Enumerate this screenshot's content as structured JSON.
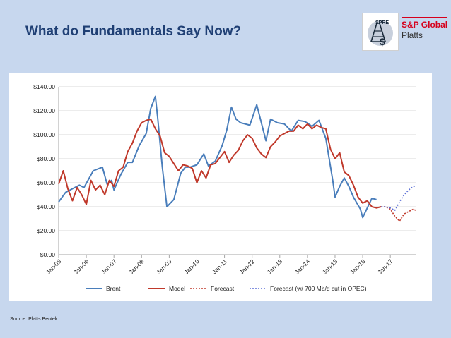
{
  "slide": {
    "title": "What do Fundamentals Say Now?",
    "source": "Source: Platts Bentek"
  },
  "logo": {
    "badge_text": "SPRE",
    "brand_line1": "S&P Global",
    "brand_line2": "Platts"
  },
  "colors": {
    "background": "#c7d7ee",
    "title": "#1f3f74",
    "brent": "#4a7ebb",
    "model": "#c0392b",
    "forecast": "#c0392b",
    "forecast_opec": "#5b6fd6"
  },
  "chart_data": {
    "type": "line",
    "title": "",
    "xlabel": "",
    "ylabel": "",
    "ylim": [
      0,
      140
    ],
    "y_ticks": [
      "$0.00",
      "$20.00",
      "$40.00",
      "$60.00",
      "$80.00",
      "$100.00",
      "$120.00",
      "$140.00"
    ],
    "x_ticks": [
      "Jan-05",
      "Jan-06",
      "Jan-07",
      "Jan-08",
      "Jan-09",
      "Jan-10",
      "Jan-11",
      "Jan-12",
      "Jan-13",
      "Jan-14",
      "Jan-15",
      "Jan-16",
      "Jan-17"
    ],
    "x_range": [
      "2005-01",
      "2017-12"
    ],
    "grid": true,
    "legend_position": "bottom",
    "series": [
      {
        "name": "Brent",
        "style": "solid",
        "points": [
          [
            "2005-01",
            44
          ],
          [
            "2005-04",
            52
          ],
          [
            "2005-08",
            56
          ],
          [
            "2005-10",
            58
          ],
          [
            "2005-12",
            56
          ],
          [
            "2006-04",
            70
          ],
          [
            "2006-08",
            73
          ],
          [
            "2006-10",
            59
          ],
          [
            "2006-12",
            62
          ],
          [
            "2007-01",
            54
          ],
          [
            "2007-04",
            67
          ],
          [
            "2007-07",
            77
          ],
          [
            "2007-09",
            77
          ],
          [
            "2007-12",
            91
          ],
          [
            "2008-03",
            101
          ],
          [
            "2008-05",
            122
          ],
          [
            "2008-07",
            132
          ],
          [
            "2008-08",
            114
          ],
          [
            "2008-10",
            73
          ],
          [
            "2008-12",
            40
          ],
          [
            "2009-03",
            46
          ],
          [
            "2009-06",
            68
          ],
          [
            "2009-08",
            73
          ],
          [
            "2009-10",
            73
          ],
          [
            "2010-01",
            75
          ],
          [
            "2010-04",
            84
          ],
          [
            "2010-06",
            74
          ],
          [
            "2010-09",
            78
          ],
          [
            "2010-12",
            91
          ],
          [
            "2011-02",
            104
          ],
          [
            "2011-04",
            123
          ],
          [
            "2011-06",
            113
          ],
          [
            "2011-08",
            110
          ],
          [
            "2011-10",
            109
          ],
          [
            "2011-12",
            108
          ],
          [
            "2012-03",
            125
          ],
          [
            "2012-05",
            110
          ],
          [
            "2012-07",
            95
          ],
          [
            "2012-09",
            113
          ],
          [
            "2012-12",
            110
          ],
          [
            "2013-03",
            109
          ],
          [
            "2013-06",
            103
          ],
          [
            "2013-09",
            112
          ],
          [
            "2013-12",
            111
          ],
          [
            "2014-03",
            107
          ],
          [
            "2014-06",
            112
          ],
          [
            "2014-09",
            97
          ],
          [
            "2014-12",
            62
          ],
          [
            "2015-01",
            48
          ],
          [
            "2015-03",
            57
          ],
          [
            "2015-05",
            64
          ],
          [
            "2015-07",
            57
          ],
          [
            "2015-09",
            48
          ],
          [
            "2015-12",
            38
          ],
          [
            "2016-01",
            31
          ],
          [
            "2016-03",
            39
          ],
          [
            "2016-05",
            47
          ],
          [
            "2016-07",
            46
          ]
        ]
      },
      {
        "name": "Model",
        "style": "solid",
        "points": [
          [
            "2005-01",
            59
          ],
          [
            "2005-03",
            70
          ],
          [
            "2005-05",
            55
          ],
          [
            "2005-07",
            45
          ],
          [
            "2005-09",
            56
          ],
          [
            "2005-11",
            50
          ],
          [
            "2006-01",
            42
          ],
          [
            "2006-03",
            62
          ],
          [
            "2006-05",
            54
          ],
          [
            "2006-07",
            58
          ],
          [
            "2006-09",
            50
          ],
          [
            "2006-11",
            62
          ],
          [
            "2007-01",
            57
          ],
          [
            "2007-03",
            70
          ],
          [
            "2007-05",
            73
          ],
          [
            "2007-07",
            86
          ],
          [
            "2007-09",
            93
          ],
          [
            "2007-11",
            103
          ],
          [
            "2008-01",
            110
          ],
          [
            "2008-03",
            112
          ],
          [
            "2008-05",
            113
          ],
          [
            "2008-07",
            105
          ],
          [
            "2008-09",
            99
          ],
          [
            "2008-11",
            85
          ],
          [
            "2009-01",
            82
          ],
          [
            "2009-03",
            76
          ],
          [
            "2009-05",
            70
          ],
          [
            "2009-07",
            75
          ],
          [
            "2009-09",
            74
          ],
          [
            "2009-11",
            72
          ],
          [
            "2010-01",
            60
          ],
          [
            "2010-03",
            70
          ],
          [
            "2010-05",
            64
          ],
          [
            "2010-07",
            75
          ],
          [
            "2010-09",
            76
          ],
          [
            "2010-11",
            81
          ],
          [
            "2011-01",
            86
          ],
          [
            "2011-03",
            77
          ],
          [
            "2011-05",
            83
          ],
          [
            "2011-07",
            87
          ],
          [
            "2011-09",
            95
          ],
          [
            "2011-11",
            100
          ],
          [
            "2012-01",
            97
          ],
          [
            "2012-03",
            89
          ],
          [
            "2012-05",
            84
          ],
          [
            "2012-07",
            81
          ],
          [
            "2012-09",
            90
          ],
          [
            "2012-11",
            94
          ],
          [
            "2013-01",
            99
          ],
          [
            "2013-03",
            101
          ],
          [
            "2013-05",
            103
          ],
          [
            "2013-07",
            103
          ],
          [
            "2013-09",
            108
          ],
          [
            "2013-11",
            105
          ],
          [
            "2014-01",
            109
          ],
          [
            "2014-03",
            105
          ],
          [
            "2014-05",
            108
          ],
          [
            "2014-07",
            106
          ],
          [
            "2014-09",
            105
          ],
          [
            "2014-11",
            88
          ],
          [
            "2015-01",
            80
          ],
          [
            "2015-03",
            85
          ],
          [
            "2015-05",
            69
          ],
          [
            "2015-07",
            66
          ],
          [
            "2015-09",
            58
          ],
          [
            "2015-11",
            48
          ],
          [
            "2016-01",
            43
          ],
          [
            "2016-03",
            45
          ],
          [
            "2016-05",
            40
          ],
          [
            "2016-07",
            39
          ],
          [
            "2016-09",
            40
          ]
        ]
      },
      {
        "name": "Forecast",
        "style": "dotted",
        "points": [
          [
            "2016-09",
            40
          ],
          [
            "2016-11",
            40
          ],
          [
            "2017-01",
            38
          ],
          [
            "2017-03",
            32
          ],
          [
            "2017-05",
            28
          ],
          [
            "2017-07",
            34
          ],
          [
            "2017-09",
            36
          ],
          [
            "2017-11",
            38
          ],
          [
            "2017-12",
            37
          ]
        ]
      },
      {
        "name": "Forecast (w/ 700 Mb/d cut in OPEC)",
        "style": "dotted",
        "points": [
          [
            "2016-09",
            40
          ],
          [
            "2016-11",
            40
          ],
          [
            "2017-01",
            39
          ],
          [
            "2017-03",
            37
          ],
          [
            "2017-05",
            44
          ],
          [
            "2017-07",
            50
          ],
          [
            "2017-09",
            54
          ],
          [
            "2017-11",
            57
          ],
          [
            "2017-12",
            57
          ]
        ]
      }
    ]
  }
}
